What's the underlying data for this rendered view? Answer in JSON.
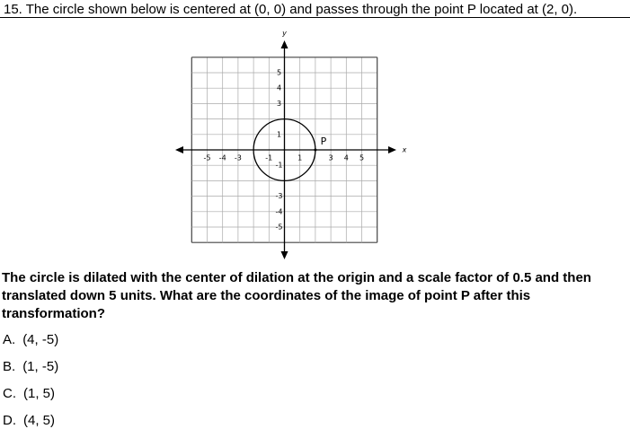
{
  "question": {
    "number": "15.",
    "text": "The circle shown below is centered at (0, 0) and passes through the point P located at (2, 0)."
  },
  "graph": {
    "x_label": "x",
    "y_label": "y",
    "x_ticks": [
      -5,
      -4,
      -3,
      -1,
      1,
      3,
      4,
      5
    ],
    "y_ticks": [
      5,
      4,
      3,
      1,
      -1,
      -3,
      -4,
      -5
    ],
    "point_label": "P"
  },
  "prompt": "The circle is dilated with the center of dilation at the origin and a scale factor of 0.5 and then translated down 5 units. What are the coordinates of the image of point P after this transformation?",
  "options": [
    {
      "letter": "A.",
      "text": "(4, -5)"
    },
    {
      "letter": "B.",
      "text": "(1, -5)"
    },
    {
      "letter": "C.",
      "text": "(1, 5)"
    },
    {
      "letter": "D.",
      "text": "(4, 5)"
    }
  ]
}
